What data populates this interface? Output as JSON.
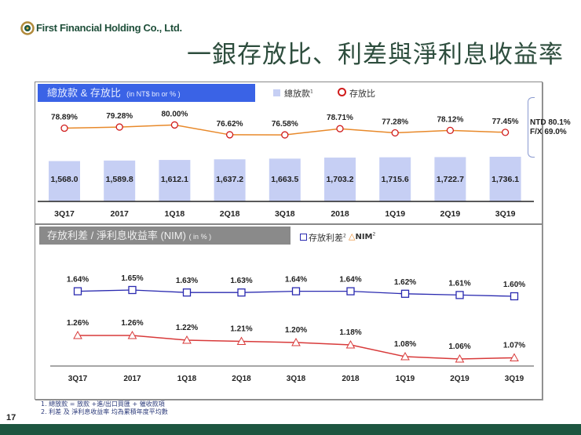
{
  "header": {
    "company": "First Financial Holding Co., Ltd.",
    "title": "一銀存放比、利差與淨利息收益率"
  },
  "colors": {
    "bar": "#c6cff4",
    "ldr_line": "#e8892a",
    "ldr_marker": "#d01c1c",
    "spread": "#2a2ab0",
    "nim": "#d83a3a",
    "header_blue": "#3a63e6",
    "header_gray": "#8a8a8a",
    "band": "#1d5640"
  },
  "chart_data": [
    {
      "type": "bar+line",
      "title": "總放款 & 存放比",
      "unit": "(in NT$ bn or % )",
      "categories": [
        "3Q17",
        "2017",
        "1Q18",
        "2Q18",
        "3Q18",
        "2018",
        "1Q19",
        "2Q19",
        "3Q19"
      ],
      "series": [
        {
          "name": "總放款",
          "sup": "1",
          "type": "bar",
          "values": [
            1568.0,
            1589.8,
            1612.1,
            1637.2,
            1663.5,
            1703.2,
            1715.6,
            1722.7,
            1736.1
          ],
          "labels": [
            "1,568.0",
            "1,589.8",
            "1,612.1",
            "1,637.2",
            "1,663.5",
            "1,703.2",
            "1,715.6",
            "1,722.7",
            "1,736.1"
          ]
        },
        {
          "name": "存放比",
          "type": "line",
          "marker": "circle",
          "values": [
            78.89,
            79.28,
            80.0,
            76.62,
            76.58,
            78.71,
            77.28,
            78.12,
            77.45
          ],
          "labels": [
            "78.89%",
            "79.28%",
            "80.00%",
            "76.62%",
            "76.58%",
            "78.71%",
            "77.28%",
            "78.12%",
            "77.45%"
          ]
        }
      ],
      "annotation": [
        "NTD 80.1%",
        "F/X 69.0%"
      ],
      "grid": false
    },
    {
      "type": "line",
      "title": "存放利差 / 淨利息收益率 (NIM)",
      "unit": "( in % )",
      "categories": [
        "3Q17",
        "2017",
        "1Q18",
        "2Q18",
        "3Q18",
        "2018",
        "1Q19",
        "2Q19",
        "3Q19"
      ],
      "series": [
        {
          "name": "存放利差",
          "sup": "2",
          "marker": "square",
          "values": [
            1.64,
            1.65,
            1.63,
            1.63,
            1.64,
            1.64,
            1.62,
            1.61,
            1.6
          ],
          "labels": [
            "1.64%",
            "1.65%",
            "1.63%",
            "1.63%",
            "1.64%",
            "1.64%",
            "1.62%",
            "1.61%",
            "1.60%"
          ]
        },
        {
          "name": "NIM",
          "sup": "2",
          "marker": "triangle",
          "values": [
            1.26,
            1.26,
            1.22,
            1.21,
            1.2,
            1.18,
            1.08,
            1.06,
            1.07
          ],
          "labels": [
            "1.26%",
            "1.26%",
            "1.22%",
            "1.21%",
            "1.20%",
            "1.18%",
            "1.08%",
            "1.06%",
            "1.07%"
          ]
        }
      ],
      "grid": false
    }
  ],
  "footnotes": [
    "1. 總放款 = 放款 +進/出口買匯 + 催收款項",
    "2. 利差 及 淨利息收益率 均為累積年度平均數"
  ],
  "page_number": "17"
}
